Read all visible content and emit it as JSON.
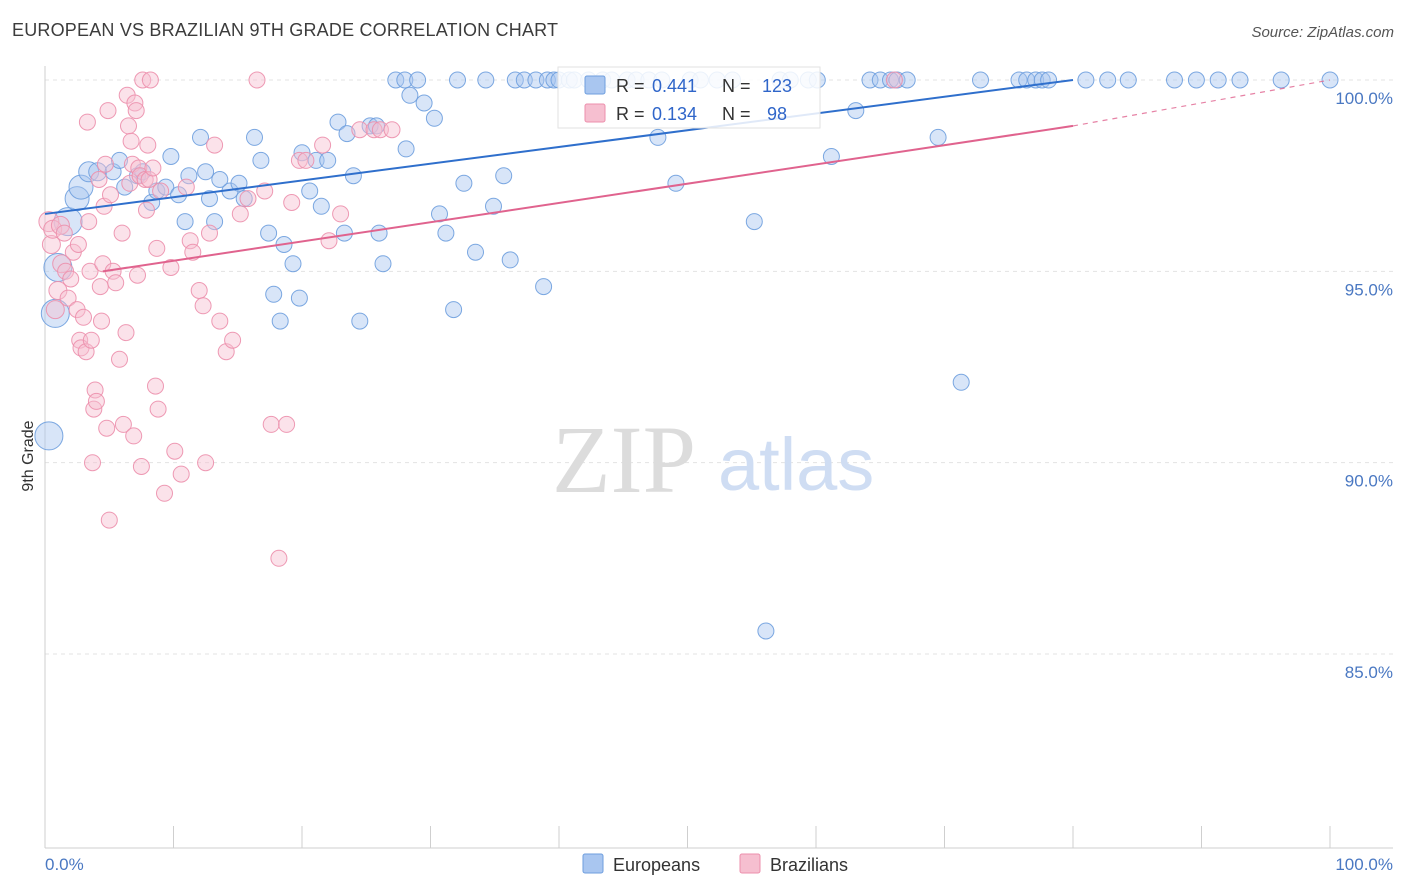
{
  "header": {
    "title": "EUROPEAN VS BRAZILIAN 9TH GRADE CORRELATION CHART",
    "source": "Source: ZipAtlas.com"
  },
  "watermark": {
    "part1": "ZIP",
    "part2": "atlas"
  },
  "colors": {
    "europeans_fill": "#a9c6f0",
    "europeans_stroke": "#6e9ede",
    "europeans_line": "#2f6fcc",
    "brazilians_fill": "#f6bfd0",
    "brazilians_stroke": "#ec8fac",
    "brazilians_line": "#e0638e"
  },
  "legend": {
    "rows": [
      {
        "r_label": "R =",
        "r_value": "0.441",
        "n_label": "N =",
        "n_value": "123"
      },
      {
        "r_label": "R =",
        "r_value": "0.134",
        "n_label": "N =",
        "n_value": " 98"
      }
    ]
  },
  "bottom_legend": {
    "europeans": "Europeans",
    "brazilians": "Brazilians"
  },
  "chart_data": {
    "type": "scatter",
    "title": "EUROPEAN VS BRAZILIAN 9TH GRADE CORRELATION CHART",
    "xlabel": "",
    "ylabel": "9th Grade",
    "xlim": [
      0,
      100
    ],
    "ylim": [
      80.5,
      100.3
    ],
    "x_tick_labels": [
      "0.0%",
      "100.0%"
    ],
    "y_ticks": [
      85,
      90,
      95,
      100
    ],
    "y_tick_labels": [
      "85.0%",
      "90.0%",
      "95.0%",
      "100.0%"
    ],
    "grid": true,
    "series": [
      {
        "name": "Europeans",
        "R": 0.441,
        "N": 123,
        "trend": {
          "x0": 0,
          "y0": 96.5,
          "x1": 80,
          "y1": 100.0,
          "dashed_to": 80
        },
        "points": [
          [
            0.3,
            90.7,
            14
          ],
          [
            0.8,
            93.9,
            14
          ],
          [
            1.0,
            95.1,
            14
          ],
          [
            1.8,
            96.3,
            14
          ],
          [
            2.5,
            96.9,
            12
          ],
          [
            2.8,
            97.2,
            12
          ],
          [
            3.4,
            97.6,
            10
          ],
          [
            4.1,
            97.6,
            9
          ],
          [
            5.3,
            97.6,
            8
          ],
          [
            5.8,
            97.9,
            8
          ],
          [
            6.2,
            97.2,
            8
          ],
          [
            7.2,
            97.5,
            8
          ],
          [
            7.6,
            97.6,
            8
          ],
          [
            8.3,
            96.8,
            8
          ],
          [
            8.7,
            97.1,
            8
          ],
          [
            9.4,
            97.2,
            8
          ],
          [
            9.8,
            98.0,
            8
          ],
          [
            10.4,
            97.0,
            8
          ],
          [
            10.9,
            96.3,
            8
          ],
          [
            11.2,
            97.5,
            8
          ],
          [
            12.1,
            98.5,
            8
          ],
          [
            12.5,
            97.6,
            8
          ],
          [
            12.8,
            96.9,
            8
          ],
          [
            13.2,
            96.3,
            8
          ],
          [
            13.6,
            97.4,
            8
          ],
          [
            14.4,
            97.1,
            8
          ],
          [
            15.1,
            97.3,
            8
          ],
          [
            15.5,
            96.9,
            8
          ],
          [
            16.3,
            98.5,
            8
          ],
          [
            16.8,
            97.9,
            8
          ],
          [
            17.4,
            96.0,
            8
          ],
          [
            17.8,
            94.4,
            8
          ],
          [
            18.3,
            93.7,
            8
          ],
          [
            18.6,
            95.7,
            8
          ],
          [
            19.3,
            95.2,
            8
          ],
          [
            19.8,
            94.3,
            8
          ],
          [
            20.0,
            98.1,
            8
          ],
          [
            20.6,
            97.1,
            8
          ],
          [
            21.1,
            97.9,
            8
          ],
          [
            21.5,
            96.7,
            8
          ],
          [
            22.0,
            97.9,
            8
          ],
          [
            22.8,
            98.9,
            8
          ],
          [
            23.3,
            96.0,
            8
          ],
          [
            23.5,
            98.6,
            8
          ],
          [
            24.0,
            97.5,
            8
          ],
          [
            24.5,
            93.7,
            8
          ],
          [
            25.3,
            98.8,
            8
          ],
          [
            25.8,
            98.8,
            8
          ],
          [
            26.0,
            96.0,
            8
          ],
          [
            26.3,
            95.2,
            8
          ],
          [
            27.3,
            100.0,
            8
          ],
          [
            28.0,
            100.0,
            8
          ],
          [
            28.1,
            98.2,
            8
          ],
          [
            28.4,
            99.6,
            8
          ],
          [
            29.0,
            100.0,
            8
          ],
          [
            29.5,
            99.4,
            8
          ],
          [
            30.3,
            99.0,
            8
          ],
          [
            30.7,
            96.5,
            8
          ],
          [
            31.2,
            96.0,
            8
          ],
          [
            31.8,
            94.0,
            8
          ],
          [
            32.1,
            100.0,
            8
          ],
          [
            32.6,
            97.3,
            8
          ],
          [
            33.5,
            95.5,
            8
          ],
          [
            34.3,
            100.0,
            8
          ],
          [
            34.9,
            96.7,
            8
          ],
          [
            35.7,
            97.5,
            8
          ],
          [
            36.2,
            95.3,
            8
          ],
          [
            36.6,
            100.0,
            8
          ],
          [
            37.3,
            100.0,
            8
          ],
          [
            38.2,
            100.0,
            8
          ],
          [
            38.8,
            94.6,
            8
          ],
          [
            39.1,
            100.0,
            8
          ],
          [
            39.6,
            100.0,
            8
          ],
          [
            40.0,
            100.0,
            8
          ],
          [
            40.8,
            100.0,
            8
          ],
          [
            41.2,
            100.0,
            8
          ],
          [
            42.3,
            100.0,
            8
          ],
          [
            43.4,
            100.0,
            8
          ],
          [
            44.1,
            100.0,
            8
          ],
          [
            45.3,
            100.0,
            8
          ],
          [
            46.0,
            100.0,
            8
          ],
          [
            47.0,
            100.0,
            8
          ],
          [
            47.7,
            98.5,
            8
          ],
          [
            48.0,
            100.0,
            8
          ],
          [
            49.1,
            97.3,
            8
          ],
          [
            50.2,
            100.0,
            8
          ],
          [
            51.0,
            100.0,
            8
          ],
          [
            52.3,
            100.0,
            8
          ],
          [
            53.5,
            100.0,
            8
          ],
          [
            55.2,
            96.3,
            8
          ],
          [
            56.1,
            85.6,
            8
          ],
          [
            57.2,
            100.0,
            8
          ],
          [
            58.0,
            100.0,
            8
          ],
          [
            59.4,
            100.0,
            8
          ],
          [
            60.1,
            100.0,
            8
          ],
          [
            61.2,
            98.0,
            8
          ],
          [
            63.1,
            99.2,
            8
          ],
          [
            64.2,
            100.0,
            8
          ],
          [
            65.0,
            100.0,
            8
          ],
          [
            65.8,
            100.0,
            8
          ],
          [
            66.3,
            100.0,
            8
          ],
          [
            67.1,
            100.0,
            8
          ],
          [
            69.5,
            98.5,
            8
          ],
          [
            71.3,
            92.1,
            8
          ],
          [
            72.8,
            100.0,
            8
          ],
          [
            75.8,
            100.0,
            8
          ],
          [
            76.4,
            100.0,
            8
          ],
          [
            77.1,
            100.0,
            8
          ],
          [
            77.6,
            100.0,
            8
          ],
          [
            78.1,
            100.0,
            8
          ],
          [
            81.0,
            100.0,
            8
          ],
          [
            82.7,
            100.0,
            8
          ],
          [
            84.3,
            100.0,
            8
          ],
          [
            87.9,
            100.0,
            8
          ],
          [
            89.6,
            100.0,
            8
          ],
          [
            91.3,
            100.0,
            8
          ],
          [
            93.0,
            100.0,
            8
          ],
          [
            96.2,
            100.0,
            8
          ],
          [
            100.0,
            100.0,
            8
          ]
        ]
      },
      {
        "name": "Brazilians",
        "R": 0.134,
        "N": 98,
        "trend": {
          "x0": 4.5,
          "y0": 95.0,
          "x1": 80,
          "y1": 98.8,
          "dashed_to": 100,
          "y_end": 100.0
        },
        "points": [
          [
            0.3,
            96.3,
            10
          ],
          [
            0.5,
            95.7,
            9
          ],
          [
            0.6,
            96.1,
            9
          ],
          [
            0.8,
            94.0,
            9
          ],
          [
            1.0,
            94.5,
            9
          ],
          [
            1.2,
            96.2,
            9
          ],
          [
            1.3,
            95.2,
            9
          ],
          [
            1.5,
            96.0,
            8
          ],
          [
            1.6,
            95.0,
            8
          ],
          [
            1.8,
            94.3,
            8
          ],
          [
            2.0,
            94.8,
            8
          ],
          [
            2.2,
            95.5,
            8
          ],
          [
            2.5,
            94.0,
            8
          ],
          [
            2.6,
            95.7,
            8
          ],
          [
            2.7,
            93.2,
            8
          ],
          [
            2.8,
            93.0,
            8
          ],
          [
            3.0,
            93.8,
            8
          ],
          [
            3.2,
            92.9,
            8
          ],
          [
            3.3,
            98.9,
            8
          ],
          [
            3.4,
            96.3,
            8
          ],
          [
            3.5,
            95.0,
            8
          ],
          [
            3.6,
            93.2,
            8
          ],
          [
            3.7,
            90.0,
            8
          ],
          [
            3.8,
            91.4,
            8
          ],
          [
            3.9,
            91.9,
            8
          ],
          [
            4.0,
            91.6,
            8
          ],
          [
            4.2,
            97.4,
            8
          ],
          [
            4.3,
            94.6,
            8
          ],
          [
            4.4,
            93.7,
            8
          ],
          [
            4.5,
            95.2,
            8
          ],
          [
            4.6,
            96.7,
            8
          ],
          [
            4.7,
            97.8,
            8
          ],
          [
            4.8,
            90.9,
            8
          ],
          [
            4.9,
            99.2,
            8
          ],
          [
            5.0,
            88.5,
            8
          ],
          [
            5.1,
            97.0,
            8
          ],
          [
            5.3,
            95.0,
            8
          ],
          [
            5.5,
            94.7,
            8
          ],
          [
            5.8,
            92.7,
            8
          ],
          [
            6.0,
            96.0,
            8
          ],
          [
            6.1,
            91.0,
            8
          ],
          [
            6.3,
            93.4,
            8
          ],
          [
            6.4,
            99.6,
            8
          ],
          [
            6.5,
            98.8,
            8
          ],
          [
            6.6,
            97.3,
            8
          ],
          [
            6.7,
            98.4,
            8
          ],
          [
            6.8,
            97.8,
            8
          ],
          [
            6.9,
            90.7,
            8
          ],
          [
            7.0,
            99.4,
            8
          ],
          [
            7.1,
            99.2,
            8
          ],
          [
            7.2,
            94.9,
            8
          ],
          [
            7.3,
            97.7,
            8
          ],
          [
            7.4,
            97.5,
            8
          ],
          [
            7.5,
            89.9,
            8
          ],
          [
            7.6,
            100.0,
            8
          ],
          [
            7.8,
            97.4,
            8
          ],
          [
            7.9,
            96.6,
            8
          ],
          [
            8.0,
            98.3,
            8
          ],
          [
            8.1,
            97.4,
            8
          ],
          [
            8.2,
            100.0,
            8
          ],
          [
            8.4,
            97.7,
            8
          ],
          [
            8.6,
            92.0,
            8
          ],
          [
            8.7,
            95.6,
            8
          ],
          [
            8.8,
            91.4,
            8
          ],
          [
            9.0,
            97.1,
            8
          ],
          [
            9.3,
            89.2,
            8
          ],
          [
            9.8,
            95.1,
            8
          ],
          [
            10.1,
            90.3,
            8
          ],
          [
            10.6,
            89.7,
            8
          ],
          [
            11.0,
            97.2,
            8
          ],
          [
            11.3,
            95.8,
            8
          ],
          [
            11.5,
            95.5,
            8
          ],
          [
            12.0,
            94.5,
            8
          ],
          [
            12.3,
            94.1,
            8
          ],
          [
            12.5,
            90.0,
            8
          ],
          [
            12.8,
            96.0,
            8
          ],
          [
            13.2,
            98.3,
            8
          ],
          [
            13.6,
            93.7,
            8
          ],
          [
            14.1,
            92.9,
            8
          ],
          [
            14.6,
            93.2,
            8
          ],
          [
            15.2,
            96.5,
            8
          ],
          [
            15.8,
            96.9,
            8
          ],
          [
            16.5,
            100.0,
            8
          ],
          [
            17.1,
            97.1,
            8
          ],
          [
            17.6,
            91.0,
            8
          ],
          [
            18.2,
            87.5,
            8
          ],
          [
            18.8,
            91.0,
            8
          ],
          [
            19.2,
            96.8,
            8
          ],
          [
            19.8,
            97.9,
            8
          ],
          [
            20.3,
            97.9,
            8
          ],
          [
            21.6,
            98.3,
            8
          ],
          [
            22.1,
            95.8,
            8
          ],
          [
            23.0,
            96.5,
            8
          ],
          [
            24.5,
            98.7,
            8
          ],
          [
            25.6,
            98.7,
            8
          ],
          [
            26.1,
            98.7,
            8
          ],
          [
            27.0,
            98.7,
            8
          ],
          [
            66.1,
            100.0,
            8
          ]
        ]
      }
    ]
  }
}
